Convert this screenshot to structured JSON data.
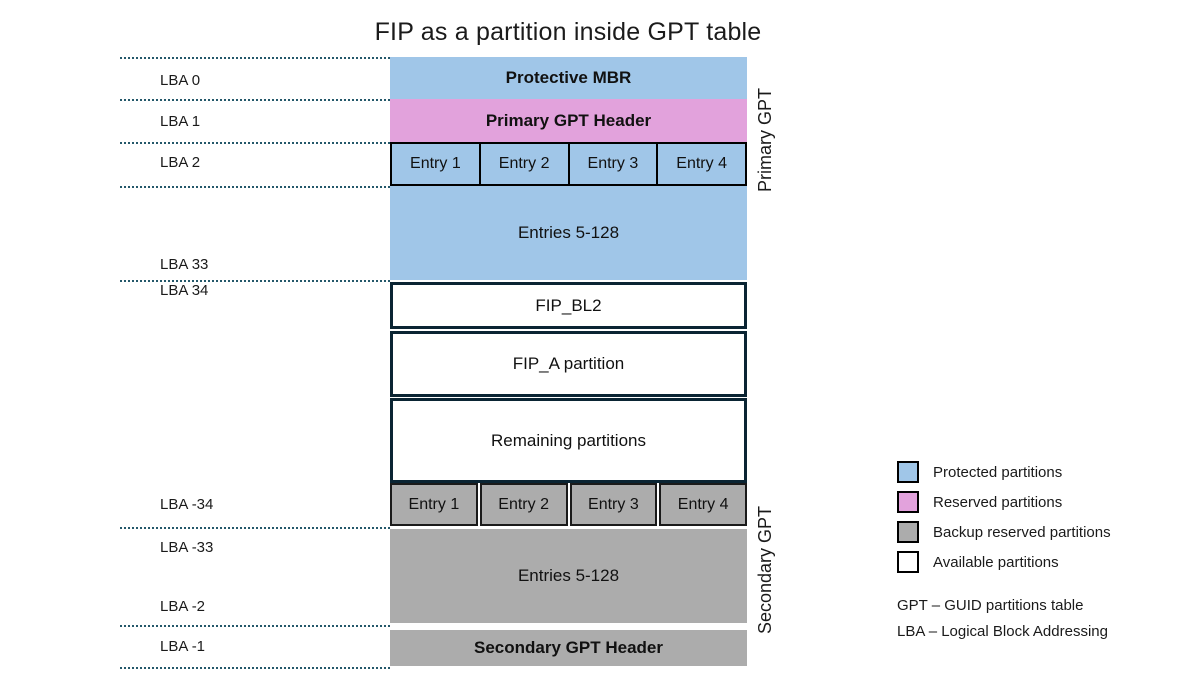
{
  "title": "FIP as a partition inside GPT table",
  "blocks": {
    "protective_mbr": "Protective MBR",
    "primary_gpt_header": "Primary GPT Header",
    "primary_entries": [
      "Entry 1",
      "Entry 2",
      "Entry 3",
      "Entry 4"
    ],
    "primary_entries_rest": "Entries 5-128",
    "fip_bl2": "FIP_BL2",
    "fip_a": "FIP_A partition",
    "remaining": "Remaining partitions",
    "secondary_entries": [
      "Entry 1",
      "Entry 2",
      "Entry 3",
      "Entry 4"
    ],
    "secondary_entries_rest": "Entries 5-128",
    "secondary_gpt_header": "Secondary GPT Header"
  },
  "lba": [
    "LBA 0",
    "LBA 1",
    "LBA 2",
    "LBA 33",
    "LBA 34",
    "LBA -34",
    "LBA -33",
    "LBA -2",
    "LBA -1"
  ],
  "side_labels": {
    "primary": "Primary GPT",
    "secondary": "Secondary GPT"
  },
  "legend": {
    "items": [
      {
        "key": "protected",
        "color": "#A0C6E8",
        "label": "Protected partitions"
      },
      {
        "key": "reserved",
        "color": "#E2A2DC",
        "label": "Reserved partitions"
      },
      {
        "key": "backup",
        "color": "#ACACAC",
        "label": "Backup reserved partitions"
      },
      {
        "key": "available",
        "color": "#FFFFFF",
        "label": "Available partitions"
      }
    ],
    "notes": [
      "GPT – GUID partitions table",
      "LBA – Logical Block Addressing"
    ]
  },
  "colors": {
    "protected_blue": "#A0C6E8",
    "reserved_pink": "#E2A2DC",
    "backup_gray": "#ACACAC",
    "available_white": "#FFFFFF",
    "box_outline": "#0A2433",
    "dotted_line": "#24586A"
  }
}
